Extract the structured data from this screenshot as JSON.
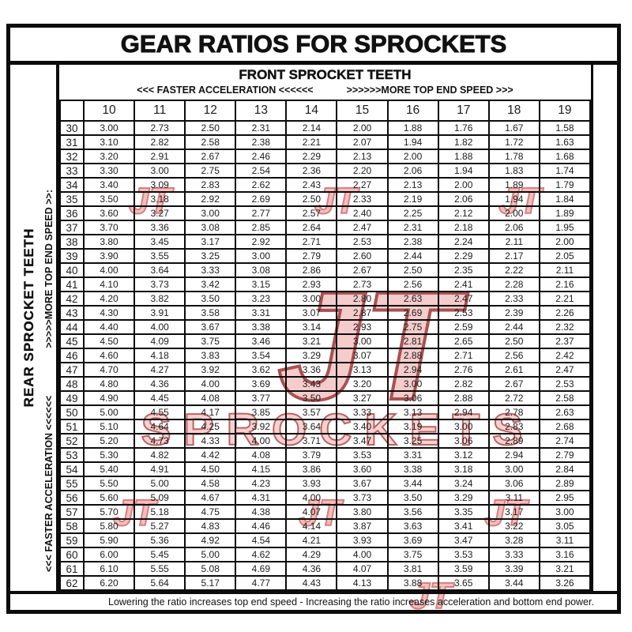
{
  "page": {
    "title": "GEAR RATIOS FOR SPROCKETS",
    "front_axis": {
      "title": "FRONT SPROCKET TEETH",
      "left_label": "<<< FASTER  ACCELERATION <<<<<<",
      "right_label": ">>>>>>MORE TOP END SPEED >>>"
    },
    "rear_axis": {
      "title": "REAR SPROCKET TEETH",
      "accel_label": "<<< FASTER  ACCELERATION <<<<<<",
      "speed_label": ">>>>>MORE TOP END SPEED >>:"
    },
    "footer_note": "Lowering the ratio increases top end speed - Increasing the ratio increases acceleration and bottom end power.",
    "watermark": {
      "logo_text": "JT",
      "brand_text": "SPROCKETS",
      "fill_color": "#f2b3b3",
      "stroke_color": "#a93a3a"
    }
  },
  "chart_data": {
    "type": "table",
    "title": "GEAR RATIOS FOR SPROCKETS",
    "columns_label": "FRONT SPROCKET TEETH",
    "rows_label": "REAR SPROCKET TEETH",
    "front_teeth": [
      10,
      11,
      12,
      13,
      14,
      15,
      16,
      17,
      18,
      19
    ],
    "rear_teeth": [
      30,
      31,
      32,
      33,
      34,
      35,
      36,
      37,
      38,
      39,
      40,
      41,
      42,
      43,
      44,
      45,
      46,
      47,
      48,
      49,
      50,
      51,
      52,
      53,
      54,
      55,
      56,
      57,
      58,
      59,
      60,
      61,
      62
    ],
    "ratios": [
      [
        "3.00",
        "2.73",
        "2.50",
        "2.31",
        "2.14",
        "2.00",
        "1.88",
        "1.76",
        "1.67",
        "1.58"
      ],
      [
        "3.10",
        "2.82",
        "2.58",
        "2.38",
        "2.21",
        "2.07",
        "1.94",
        "1.82",
        "1.72",
        "1.63"
      ],
      [
        "3.20",
        "2.91",
        "2.67",
        "2.46",
        "2.29",
        "2.13",
        "2.00",
        "1.88",
        "1.78",
        "1.68"
      ],
      [
        "3.30",
        "3.00",
        "2.75",
        "2.54",
        "2.36",
        "2.20",
        "2.06",
        "1.94",
        "1.83",
        "1.74"
      ],
      [
        "3.40",
        "3.09",
        "2.83",
        "2.62",
        "2.43",
        "2.27",
        "2.13",
        "2.00",
        "1.89",
        "1.79"
      ],
      [
        "3.50",
        "3.18",
        "2.92",
        "2.69",
        "2.50",
        "2.33",
        "2.19",
        "2.06",
        "1.94",
        "1.84"
      ],
      [
        "3.60",
        "3.27",
        "3.00",
        "2.77",
        "2.57",
        "2.40",
        "2.25",
        "2.12",
        "2.00",
        "1.89"
      ],
      [
        "3.70",
        "3.36",
        "3.08",
        "2.85",
        "2.64",
        "2.47",
        "2.31",
        "2.18",
        "2.06",
        "1.95"
      ],
      [
        "3.80",
        "3.45",
        "3.17",
        "2.92",
        "2.71",
        "2.53",
        "2.38",
        "2.24",
        "2.11",
        "2.00"
      ],
      [
        "3.90",
        "3.55",
        "3.25",
        "3.00",
        "2.79",
        "2.60",
        "2.44",
        "2.29",
        "2.17",
        "2.05"
      ],
      [
        "4.00",
        "3.64",
        "3.33",
        "3.08",
        "2.86",
        "2.67",
        "2.50",
        "2.35",
        "2.22",
        "2.11"
      ],
      [
        "4.10",
        "3.73",
        "3.42",
        "3.15",
        "2.93",
        "2.73",
        "2.56",
        "2.41",
        "2.28",
        "2.16"
      ],
      [
        "4.20",
        "3.82",
        "3.50",
        "3.23",
        "3.00",
        "2.80",
        "2.63",
        "2.47",
        "2.33",
        "2.21"
      ],
      [
        "4.30",
        "3.91",
        "3.58",
        "3.31",
        "3.07",
        "2.87",
        "2.69",
        "2.53",
        "2.39",
        "2.26"
      ],
      [
        "4.40",
        "4.00",
        "3.67",
        "3.38",
        "3.14",
        "2.93",
        "2.75",
        "2.59",
        "2.44",
        "2.32"
      ],
      [
        "4.50",
        "4.09",
        "3.75",
        "3.46",
        "3.21",
        "3.00",
        "2.81",
        "2.65",
        "2.50",
        "2.37"
      ],
      [
        "4.60",
        "4.18",
        "3.83",
        "3.54",
        "3.29",
        "3.07",
        "2.88",
        "2.71",
        "2.56",
        "2.42"
      ],
      [
        "4.70",
        "4.27",
        "3.92",
        "3.62",
        "3.36",
        "3.13",
        "2.94",
        "2.76",
        "2.61",
        "2.47"
      ],
      [
        "4.80",
        "4.36",
        "4.00",
        "3.69",
        "3.43",
        "3.20",
        "3.00",
        "2.82",
        "2.67",
        "2.53"
      ],
      [
        "4.90",
        "4.45",
        "4.08",
        "3.77",
        "3.50",
        "3.27",
        "3.06",
        "2.88",
        "2.72",
        "2.58"
      ],
      [
        "5.00",
        "4.55",
        "4.17",
        "3.85",
        "3.57",
        "3.33",
        "3.13",
        "2.94",
        "2.78",
        "2.63"
      ],
      [
        "5.10",
        "4.64",
        "4.25",
        "3.92",
        "3.64",
        "3.40",
        "3.19",
        "3.00",
        "2.83",
        "2.68"
      ],
      [
        "5.20",
        "4.73",
        "4.33",
        "4.00",
        "3.71",
        "3.47",
        "3.25",
        "3.06",
        "2.89",
        "2.74"
      ],
      [
        "5.30",
        "4.82",
        "4.42",
        "4.08",
        "3.79",
        "3.53",
        "3.31",
        "3.12",
        "2.94",
        "2.79"
      ],
      [
        "5.40",
        "4.91",
        "4.50",
        "4.15",
        "3.86",
        "3.60",
        "3.38",
        "3.18",
        "3.00",
        "2.84"
      ],
      [
        "5.50",
        "5.00",
        "4.58",
        "4.23",
        "3.93",
        "3.67",
        "3.44",
        "3.24",
        "3.06",
        "2.89"
      ],
      [
        "5.60",
        "5.09",
        "4.67",
        "4.31",
        "4.00",
        "3.73",
        "3.50",
        "3.29",
        "3.11",
        "2.95"
      ],
      [
        "5.70",
        "5.18",
        "4.75",
        "4.38",
        "4.07",
        "3.80",
        "3.56",
        "3.35",
        "3.17",
        "3.00"
      ],
      [
        "5.80",
        "5.27",
        "4.83",
        "4.46",
        "4.14",
        "3.87",
        "3.63",
        "3.41",
        "3.22",
        "3.05"
      ],
      [
        "5.90",
        "5.36",
        "4.92",
        "4.54",
        "4.21",
        "3.93",
        "3.69",
        "3.47",
        "3.28",
        "3.11"
      ],
      [
        "6.00",
        "5.45",
        "5.00",
        "4.62",
        "4.29",
        "4.00",
        "3.75",
        "3.53",
        "3.33",
        "3.16"
      ],
      [
        "6.10",
        "5.55",
        "5.08",
        "4.69",
        "4.36",
        "4.07",
        "3.81",
        "3.59",
        "3.39",
        "3.21"
      ],
      [
        "6.20",
        "5.64",
        "5.17",
        "4.77",
        "4.43",
        "4.13",
        "3.88",
        "3.65",
        "3.44",
        "3.26"
      ]
    ]
  }
}
